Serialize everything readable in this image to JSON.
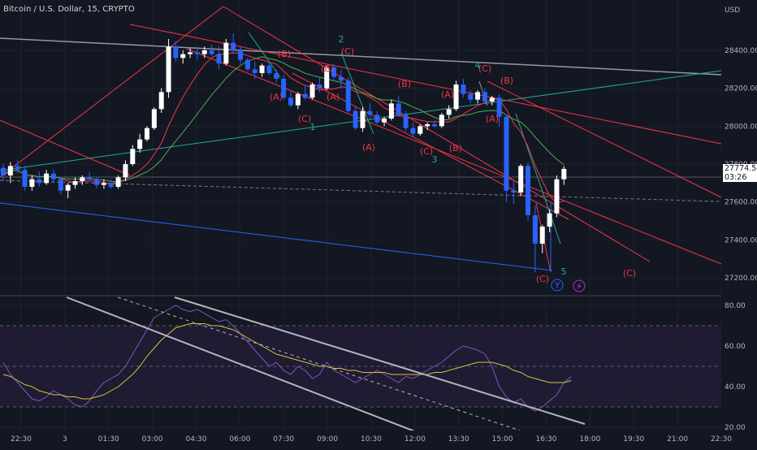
{
  "title": "Bitcoin / U.S. Dollar, 15, CRYPTO",
  "currency": "USD",
  "chart_data": [
    {
      "type": "candlestick",
      "symbol": "Bitcoin / U.S. Dollar",
      "interval": "15",
      "exchange": "CRYPTO",
      "y_unit": "USD",
      "ylim": [
        27150,
        28600
      ],
      "y_ticks": [
        27200,
        27400,
        27600,
        27800,
        28000,
        28200,
        28400
      ],
      "y_tick_labels": [
        "27200.00",
        "27400.00",
        "27600.00",
        "27800.00",
        "28000.00",
        "28200.00",
        "28400.00"
      ],
      "x_tick_labels": [
        "22:30",
        "3",
        "01:30",
        "03:00",
        "04:30",
        "06:00",
        "07:30",
        "09:00",
        "10:30",
        "12:00",
        "13:30",
        "15:00",
        "16:30",
        "18:00",
        "19:30",
        "21:00",
        "22:30"
      ],
      "last_price": "27774.54",
      "countdown": "03:26",
      "candles": [
        [
          27780,
          27800,
          27710,
          27740
        ],
        [
          27740,
          27810,
          27700,
          27790
        ],
        [
          27790,
          27820,
          27750,
          27770
        ],
        [
          27770,
          27790,
          27660,
          27680
        ],
        [
          27680,
          27740,
          27660,
          27720
        ],
        [
          27720,
          27760,
          27680,
          27700
        ],
        [
          27700,
          27770,
          27690,
          27750
        ],
        [
          27750,
          27770,
          27700,
          27720
        ],
        [
          27720,
          27730,
          27640,
          27660
        ],
        [
          27660,
          27700,
          27620,
          27690
        ],
        [
          27690,
          27730,
          27670,
          27710
        ],
        [
          27710,
          27740,
          27690,
          27730
        ],
        [
          27730,
          27760,
          27710,
          27720
        ],
        [
          27720,
          27730,
          27670,
          27690
        ],
        [
          27690,
          27720,
          27670,
          27700
        ],
        [
          27700,
          27720,
          27670,
          27680
        ],
        [
          27680,
          27740,
          27670,
          27730
        ],
        [
          27730,
          27820,
          27710,
          27800
        ],
        [
          27800,
          27900,
          27790,
          27880
        ],
        [
          27880,
          27960,
          27860,
          27930
        ],
        [
          27930,
          28000,
          27920,
          27990
        ],
        [
          27990,
          28100,
          27980,
          28090
        ],
        [
          28090,
          28200,
          28070,
          28180
        ],
        [
          28180,
          28460,
          28150,
          28420
        ],
        [
          28420,
          28450,
          28340,
          28360
        ],
        [
          28360,
          28400,
          28330,
          28380
        ],
        [
          28380,
          28410,
          28360,
          28390
        ],
        [
          28390,
          28420,
          28350,
          28380
        ],
        [
          28380,
          28420,
          28360,
          28400
        ],
        [
          28400,
          28430,
          28370,
          28380
        ],
        [
          28380,
          28420,
          28300,
          28330
        ],
        [
          28330,
          28460,
          28320,
          28440
        ],
        [
          28440,
          28490,
          28380,
          28400
        ],
        [
          28400,
          28420,
          28330,
          28350
        ],
        [
          28350,
          28360,
          28290,
          28300
        ],
        [
          28300,
          28340,
          28250,
          28280
        ],
        [
          28280,
          28330,
          28260,
          28320
        ],
        [
          28320,
          28340,
          28270,
          28280
        ],
        [
          28280,
          28300,
          28230,
          28250
        ],
        [
          28250,
          28270,
          28140,
          28150
        ],
        [
          28150,
          28190,
          28100,
          28110
        ],
        [
          28110,
          28180,
          28090,
          28170
        ],
        [
          28170,
          28220,
          28140,
          28150
        ],
        [
          28150,
          28230,
          28140,
          28220
        ],
        [
          28220,
          28260,
          28180,
          28200
        ],
        [
          28200,
          28320,
          28190,
          28310
        ],
        [
          28310,
          28330,
          28240,
          28260
        ],
        [
          28260,
          28300,
          28200,
          28240
        ],
        [
          28240,
          28260,
          28070,
          28080
        ],
        [
          28080,
          28100,
          27980,
          27990
        ],
        [
          27990,
          28100,
          27970,
          28080
        ],
        [
          28080,
          28120,
          28030,
          28060
        ],
        [
          28060,
          28080,
          28010,
          28020
        ],
        [
          28020,
          28050,
          28000,
          28040
        ],
        [
          28040,
          28140,
          28030,
          28120
        ],
        [
          28120,
          28160,
          28050,
          28060
        ],
        [
          28060,
          28080,
          27970,
          27990
        ],
        [
          27990,
          28020,
          27940,
          27960
        ],
        [
          27960,
          28010,
          27950,
          28000
        ],
        [
          28000,
          28020,
          27980,
          28010
        ],
        [
          28010,
          28030,
          27990,
          28000
        ],
        [
          28000,
          28070,
          27990,
          28060
        ],
        [
          28060,
          28110,
          28040,
          28090
        ],
        [
          28090,
          28240,
          28080,
          28220
        ],
        [
          28220,
          28250,
          28150,
          28170
        ],
        [
          28170,
          28190,
          28120,
          28140
        ],
        [
          28140,
          28190,
          28120,
          28180
        ],
        [
          28180,
          28200,
          28120,
          28130
        ],
        [
          28130,
          28160,
          28110,
          28150
        ],
        [
          28150,
          28170,
          28000,
          28050
        ],
        [
          28050,
          28060,
          27600,
          27660
        ],
        [
          27660,
          27710,
          27590,
          27650
        ],
        [
          27650,
          27800,
          27630,
          27790
        ],
        [
          27790,
          27810,
          27500,
          27530
        ],
        [
          27530,
          27580,
          27230,
          27380
        ],
        [
          27380,
          27480,
          27330,
          27470
        ],
        [
          27470,
          27560,
          27440,
          27540
        ],
        [
          27540,
          27740,
          27520,
          27720
        ],
        [
          27720,
          27790,
          27690,
          27774.54
        ]
      ],
      "markers": [
        "(A)",
        "(B)",
        "(C)",
        "1",
        "(A)",
        "(B)",
        "(C)",
        "2",
        "(A)",
        "(B)",
        "(C)",
        "3",
        "(A)",
        "(B)",
        "(C)",
        "4",
        "(A)",
        "(B)",
        "(C)",
        "5",
        "(C)",
        "Y"
      ]
    },
    {
      "type": "line",
      "indicator": "RSI",
      "ylim": [
        18,
        87
      ],
      "y_ticks": [
        20,
        40,
        60,
        80
      ],
      "y_tick_labels": [
        "20.00",
        "40.00",
        "60.00",
        "80.00"
      ],
      "upper_band": 70,
      "middle_band": 50,
      "lower_band": 30,
      "series": [
        {
          "values": [
            52,
            46,
            42,
            38,
            34,
            33,
            35,
            38,
            36,
            34,
            31,
            30,
            33,
            38,
            42,
            44,
            46,
            50,
            56,
            62,
            68,
            74,
            76,
            78,
            80,
            78,
            77,
            78,
            76,
            74,
            72,
            73,
            70,
            66,
            62,
            58,
            54,
            50,
            52,
            48,
            46,
            50,
            48,
            44,
            46,
            52,
            48,
            46,
            44,
            42,
            44,
            46,
            48,
            46,
            44,
            42,
            45,
            44,
            46,
            48,
            50,
            52,
            55,
            58,
            60,
            59,
            58,
            56,
            50,
            40,
            35,
            32,
            34,
            30,
            28,
            30,
            33,
            36,
            42,
            45
          ]
        },
        {
          "values": [
            46,
            45,
            43,
            41,
            40,
            38,
            37,
            36,
            36,
            35,
            35,
            34,
            34,
            35,
            36,
            38,
            40,
            43,
            46,
            50,
            55,
            59,
            63,
            66,
            69,
            70,
            71,
            71,
            71,
            70,
            70,
            69,
            68,
            66,
            64,
            62,
            60,
            58,
            56,
            55,
            54,
            53,
            52,
            51,
            50,
            50,
            49,
            49,
            48,
            48,
            47,
            47,
            47,
            47,
            46,
            46,
            46,
            46,
            46,
            46,
            47,
            47,
            48,
            49,
            50,
            51,
            52,
            52,
            52,
            51,
            50,
            48,
            47,
            45,
            44,
            43,
            42,
            42,
            42,
            43
          ]
        }
      ]
    }
  ]
}
